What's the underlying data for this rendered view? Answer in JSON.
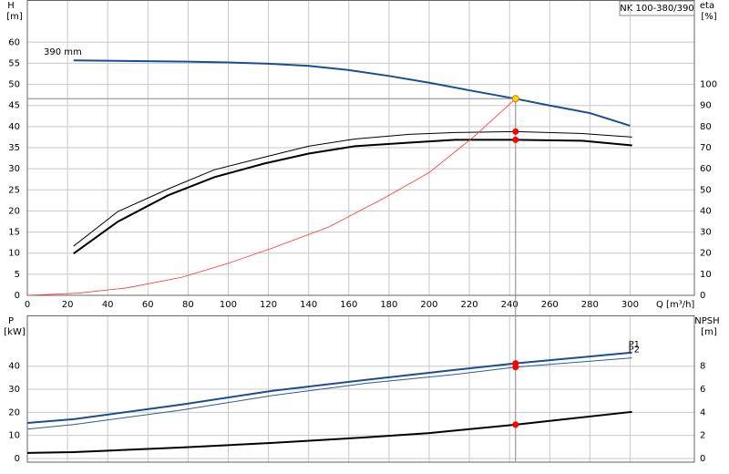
{
  "chart_data": [
    {
      "type": "line",
      "title": "NK 100-380/390",
      "x_label": "Q [m³/h]",
      "y_label": "H",
      "y_unit": "[m]",
      "y2_label": "eta",
      "y2_unit": "[%]",
      "xlim": [
        0,
        332
      ],
      "xticks": [
        0,
        20,
        40,
        60,
        80,
        100,
        120,
        140,
        160,
        180,
        200,
        220,
        240,
        260,
        280,
        300
      ],
      "ylim": [
        0,
        70
      ],
      "yticks": [
        0,
        5,
        10,
        15,
        20,
        25,
        30,
        35,
        40,
        45,
        50,
        55,
        60
      ],
      "y2lim": [
        0,
        140
      ],
      "y2ticks": [
        0,
        10,
        20,
        30,
        40,
        50,
        60,
        70,
        80,
        90,
        100
      ],
      "grid": true,
      "duty_q": 243,
      "series": [
        {
          "name": "390 mm",
          "color": "#1a4f8f",
          "line_width": 2,
          "dot_color": "#ffd700",
          "x": [
            23,
            40,
            60,
            80,
            100,
            120,
            140,
            160,
            180,
            200,
            220,
            243,
            260,
            280,
            300
          ],
          "values": [
            55.7,
            55.6,
            55.5,
            55.4,
            55.2,
            54.9,
            54.4,
            53.4,
            52,
            50.4,
            48.6,
            46.6,
            45,
            43.2,
            40.2
          ]
        },
        {
          "color": "#000000",
          "line_width": 1,
          "axis": "y2",
          "dot_color": "#ff0000",
          "x": [
            23,
            45,
            70,
            93,
            118,
            140,
            163,
            190,
            213,
            243,
            276,
            301
          ],
          "values": [
            23.3,
            39.7,
            50.4,
            59.5,
            65.5,
            70.7,
            74.1,
            76.3,
            77.2,
            77.6,
            76.7,
            75
          ]
        },
        {
          "color": "#000000",
          "line_width": 2,
          "axis": "y2",
          "dot_color": "#ff0000",
          "x": [
            23,
            45,
            70,
            93,
            118,
            140,
            163,
            190,
            213,
            243,
            276,
            301
          ],
          "values": [
            19.8,
            34.9,
            47.4,
            56,
            62.5,
            67.2,
            70.7,
            72.4,
            73.7,
            73.7,
            73.3,
            71.1
          ]
        },
        {
          "color": "#ff3333",
          "line_width": 0.8,
          "x": [
            0,
            25,
            50,
            77,
            100,
            122,
            150,
            177,
            200,
            222,
            243
          ],
          "values": [
            0,
            0.5,
            1.8,
            4.3,
            7.6,
            11.2,
            16.2,
            22.9,
            29.1,
            37.5,
            46.6
          ]
        }
      ]
    },
    {
      "type": "line",
      "y_label": "P",
      "y_unit": "[kW]",
      "y2_label": "NPSH",
      "y2_unit": "[m]",
      "xlim": [
        0,
        332
      ],
      "ylim": [
        -1.6,
        62
      ],
      "yticks": [
        0,
        10,
        20,
        30,
        40
      ],
      "y2lim": [
        -0.32,
        12.4
      ],
      "y2ticks": [
        0,
        2,
        4,
        6,
        8
      ],
      "grid": true,
      "duty_q": 243,
      "series": [
        {
          "name": "P1",
          "color": "#1e4d8c",
          "line_width": 2,
          "dot_color": "#ff0000",
          "x": [
            0,
            23,
            77,
            122,
            168,
            213,
            243,
            301
          ],
          "values": [
            15.4,
            17,
            23.4,
            29.3,
            34,
            38.4,
            41.2,
            45.9
          ]
        },
        {
          "name": "P2",
          "color": "#2a5b9b",
          "line_width": 1,
          "dot_color": "#ff0000",
          "x": [
            0,
            23,
            77,
            122,
            168,
            213,
            243,
            301
          ],
          "values": [
            12.7,
            14.7,
            21,
            27.3,
            32.5,
            36.4,
            39.6,
            43.6
          ]
        },
        {
          "color": "#000000",
          "line_width": 2,
          "axis": "y2",
          "dot_color": "#ff0000",
          "x": [
            0,
            23,
            77,
            122,
            168,
            200,
            243,
            301
          ],
          "values": [
            0.48,
            0.55,
            0.95,
            1.35,
            1.82,
            2.2,
            2.93,
            4.04
          ]
        }
      ]
    }
  ]
}
